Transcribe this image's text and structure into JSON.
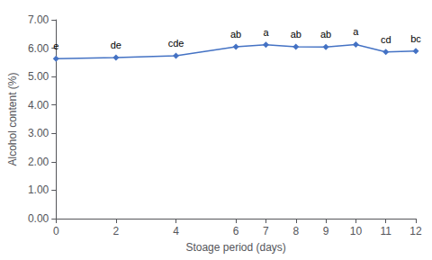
{
  "chart_data": {
    "type": "line",
    "x": [
      0,
      2,
      4,
      6,
      7,
      8,
      9,
      10,
      11,
      12
    ],
    "values": [
      5.63,
      5.67,
      5.73,
      6.05,
      6.12,
      6.05,
      6.04,
      6.13,
      5.87,
      5.9
    ],
    "annotations": [
      "e",
      "de",
      "cde",
      "ab",
      "a",
      "ab",
      "ab",
      "a",
      "cd",
      "bc"
    ],
    "color": "#4472C4",
    "marker": "diamond",
    "xlabel": "Stoage period (days)",
    "ylabel": "Alcohol content (%)",
    "xlim": [
      0,
      12
    ],
    "xticks": [
      0,
      2,
      4,
      6,
      7,
      8,
      9,
      10,
      11,
      12
    ],
    "ylim": [
      0,
      7
    ],
    "yticks": [
      {
        "value": 0,
        "label": "0.00"
      },
      {
        "value": 1,
        "label": "1.00"
      },
      {
        "value": 2,
        "label": "2.00"
      },
      {
        "value": 3,
        "label": "3.00"
      },
      {
        "value": 4,
        "label": "4.00"
      },
      {
        "value": 5,
        "label": "5.00"
      },
      {
        "value": 6,
        "label": "6.00"
      },
      {
        "value": 7,
        "label": "7.00"
      }
    ],
    "grid": false
  }
}
